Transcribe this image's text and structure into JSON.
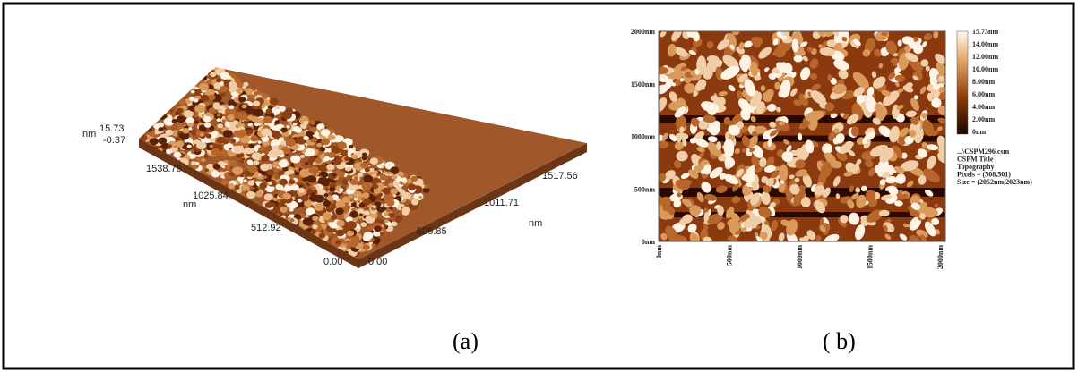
{
  "panel_a": {
    "z_unit": "nm",
    "z_max": "15.73",
    "z_min": "-0.37",
    "y_ticks": [
      "1538.76",
      "1025.84",
      "512.92",
      "0.00"
    ],
    "y_unit": "nm",
    "x_ticks": [
      "0.00",
      "505.85",
      "1011.71",
      "1517.56"
    ],
    "x_unit": "nm",
    "caption": "(a)"
  },
  "panel_b": {
    "y_ticks": [
      "2000nm",
      "1500nm",
      "1000nm",
      "500nm",
      "0nm"
    ],
    "x_ticks": [
      "0nm",
      "500nm",
      "1000nm",
      "1500nm",
      "2000nm"
    ],
    "colorbar": [
      "15.73nm",
      "14.00nm",
      "12.00nm",
      "10.00nm",
      "8.00nm",
      "6.00nm",
      "4.00nm",
      "2.00nm",
      "0nm"
    ],
    "info": [
      "...\\CSPM296.csm",
      "CSPM Title",
      "Topography",
      "Pixels = (508,501)",
      "Size = (2052nm,2023nm)"
    ],
    "caption": "( b)"
  }
}
